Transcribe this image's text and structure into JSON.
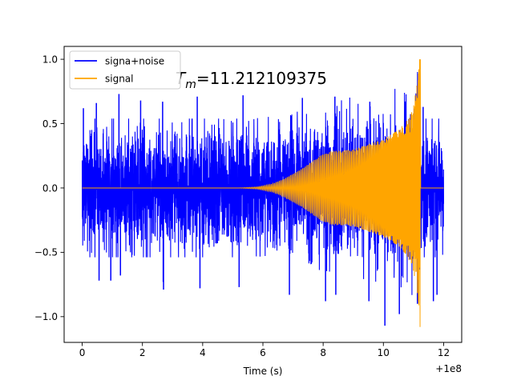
{
  "chart_data": {
    "type": "line",
    "title": "",
    "xlabel": "Time (s)",
    "ylabel": "",
    "x_offset_label": "+1e8",
    "xlim": [
      -0.6,
      12.6
    ],
    "ylim": [
      -1.2,
      1.1
    ],
    "xticks": [
      0,
      2,
      4,
      6,
      8,
      10,
      12
    ],
    "xtick_labels": [
      "0",
      "2",
      "4",
      "6",
      "8",
      "10",
      "12"
    ],
    "yticks": [
      -1.0,
      -0.5,
      0.0,
      0.5,
      1.0
    ],
    "ytick_labels": [
      "−1.0",
      "−0.5",
      "0.0",
      "0.5",
      "1.0"
    ],
    "grid": false,
    "legend_position": "top-left",
    "annotation": {
      "symbol": "T",
      "subscript": "m",
      "text": "=11.212109375",
      "x": 3.1,
      "y": 0.85
    },
    "series": [
      {
        "name": "signa+noise",
        "color": "#0000ff",
        "x_start": 0,
        "x_end": 12,
        "baseline_envelope": 0.55,
        "extremes": [
          [
            0.04,
            0.62
          ],
          [
            0.47,
            0.66
          ],
          [
            1.22,
            0.73
          ],
          [
            1.94,
            0.68
          ],
          [
            2.67,
            0.67
          ],
          [
            3.82,
            0.71
          ],
          [
            5.34,
            0.72
          ],
          [
            7.31,
            0.7
          ],
          [
            8.39,
            0.71
          ],
          [
            9.55,
            0.67
          ],
          [
            11.32,
            0.63
          ],
          [
            0.56,
            -0.72
          ],
          [
            0.95,
            -0.72
          ],
          [
            1.27,
            -0.68
          ],
          [
            2.69,
            -0.73
          ],
          [
            2.7,
            -0.79
          ],
          [
            3.91,
            -0.78
          ],
          [
            5.21,
            -0.77
          ],
          [
            6.88,
            -0.83
          ],
          [
            8.08,
            -0.88
          ],
          [
            8.42,
            -0.83
          ],
          [
            9.52,
            -0.88
          ],
          [
            10.05,
            -1.07
          ],
          [
            10.53,
            -0.98
          ],
          [
            11.13,
            -0.9
          ],
          [
            11.66,
            -0.88
          ],
          [
            11.78,
            -0.83
          ]
        ]
      },
      {
        "name": "signal",
        "color": "#ffa500",
        "envelope": [
          [
            0,
            0
          ],
          [
            5.2,
            0
          ],
          [
            5.8,
            0.008
          ],
          [
            6.3,
            0.03
          ],
          [
            6.7,
            0.07
          ],
          [
            7.0,
            0.11
          ],
          [
            7.3,
            0.15
          ],
          [
            7.6,
            0.2
          ],
          [
            7.9,
            0.25
          ],
          [
            8.1,
            0.27
          ],
          [
            8.3,
            0.29
          ],
          [
            8.6,
            0.29
          ],
          [
            9.0,
            0.3
          ],
          [
            9.5,
            0.34
          ],
          [
            10.0,
            0.38
          ],
          [
            10.5,
            0.45
          ],
          [
            10.8,
            0.53
          ],
          [
            11.0,
            0.65
          ],
          [
            11.15,
            0.85
          ],
          [
            11.2,
            1.0
          ],
          [
            11.212,
            1.08
          ],
          [
            11.22,
            0
          ],
          [
            12.0,
            0
          ]
        ],
        "peak_max": 1.0,
        "peak_min": -1.08,
        "merger_time": 11.212109375
      }
    ]
  }
}
